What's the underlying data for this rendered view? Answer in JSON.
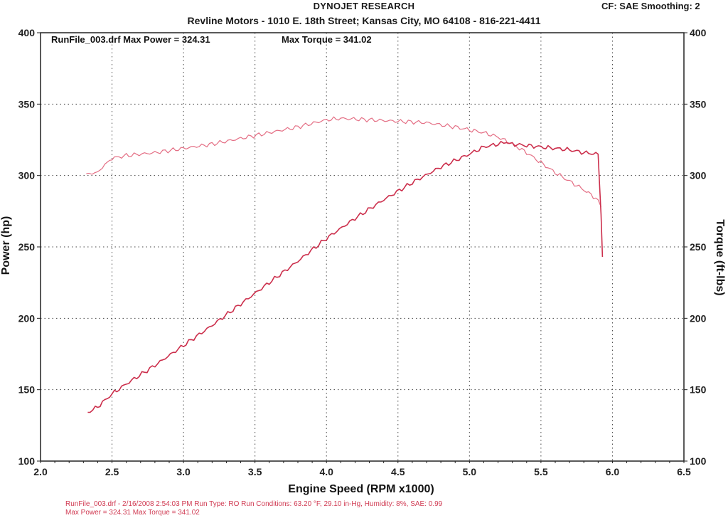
{
  "header": {
    "title": "DYNOJET RESEARCH",
    "subtitle": "Revline Motors - 1010 E. 18th Street; Kansas City, MO 64108 - 816-221-4411",
    "cf_info": "CF: SAE  Smoothing: 2"
  },
  "colors": {
    "torque": "#e46e84",
    "power": "#cc2f4c",
    "grid": "#444444",
    "frame": "#222222"
  },
  "chart_data": {
    "type": "line",
    "title": "",
    "run_label": "RunFile_003.drf Max Power = 324.31",
    "torque_label": "Max Torque = 341.02",
    "xlabel": "Engine Speed (RPM x1000)",
    "ylabel_left": "Power (hp)",
    "ylabel_right": "Torque (ft-lbs)",
    "xlim": [
      2.0,
      6.5
    ],
    "ylim": [
      100,
      400
    ],
    "xticks": [
      "2.0",
      "2.5",
      "3.0",
      "3.5",
      "4.0",
      "4.5",
      "5.0",
      "5.5",
      "6.0",
      "6.5"
    ],
    "yticks_left": [
      "400",
      "350",
      "300",
      "250",
      "200",
      "150",
      "100"
    ],
    "yticks_right": [
      "400",
      "350",
      "300",
      "250",
      "200",
      "150",
      "100"
    ],
    "grid": true,
    "series": [
      {
        "axis": "right",
        "x": [
          2.32,
          2.4,
          2.45,
          2.5,
          2.6,
          2.8,
          3.0,
          3.2,
          3.4,
          3.6,
          3.8,
          4.0,
          4.1,
          4.3,
          4.5,
          4.7,
          4.9,
          5.0,
          5.1,
          5.2,
          5.3,
          5.4,
          5.5,
          5.6,
          5.7,
          5.8,
          5.9,
          5.92
        ],
        "y": [
          301,
          302,
          308,
          312,
          314,
          316,
          319,
          322,
          326,
          330,
          334,
          339,
          340,
          339,
          338,
          337,
          334,
          332,
          330,
          327,
          322,
          316,
          309,
          302,
          296,
          290,
          283,
          278
        ]
      },
      {
        "axis": "left",
        "x": [
          2.33,
          2.4,
          2.5,
          2.6,
          2.8,
          3.0,
          3.2,
          3.4,
          3.6,
          3.8,
          4.0,
          4.2,
          4.4,
          4.6,
          4.8,
          5.0,
          5.1,
          5.2,
          5.26,
          5.3,
          5.4,
          5.5,
          5.6,
          5.7,
          5.8,
          5.9,
          5.92,
          5.93
        ],
        "y": [
          134,
          138,
          147,
          154,
          167,
          181,
          195,
          210,
          225,
          240,
          256,
          270,
          283,
          295,
          306,
          315,
          320,
          322,
          323,
          322,
          321,
          320,
          319,
          318,
          316,
          315,
          273,
          243
        ]
      }
    ]
  },
  "footer": {
    "line1": "RunFile_003.drf - 2/16/2008 2:54:03 PM  Run Type: RO  Run Conditions: 63.20 °F, 29.10 in-Hg,  Humidity:  8%, SAE: 0.99",
    "line2": "Max Power = 324.31  Max Torque = 341.02"
  }
}
